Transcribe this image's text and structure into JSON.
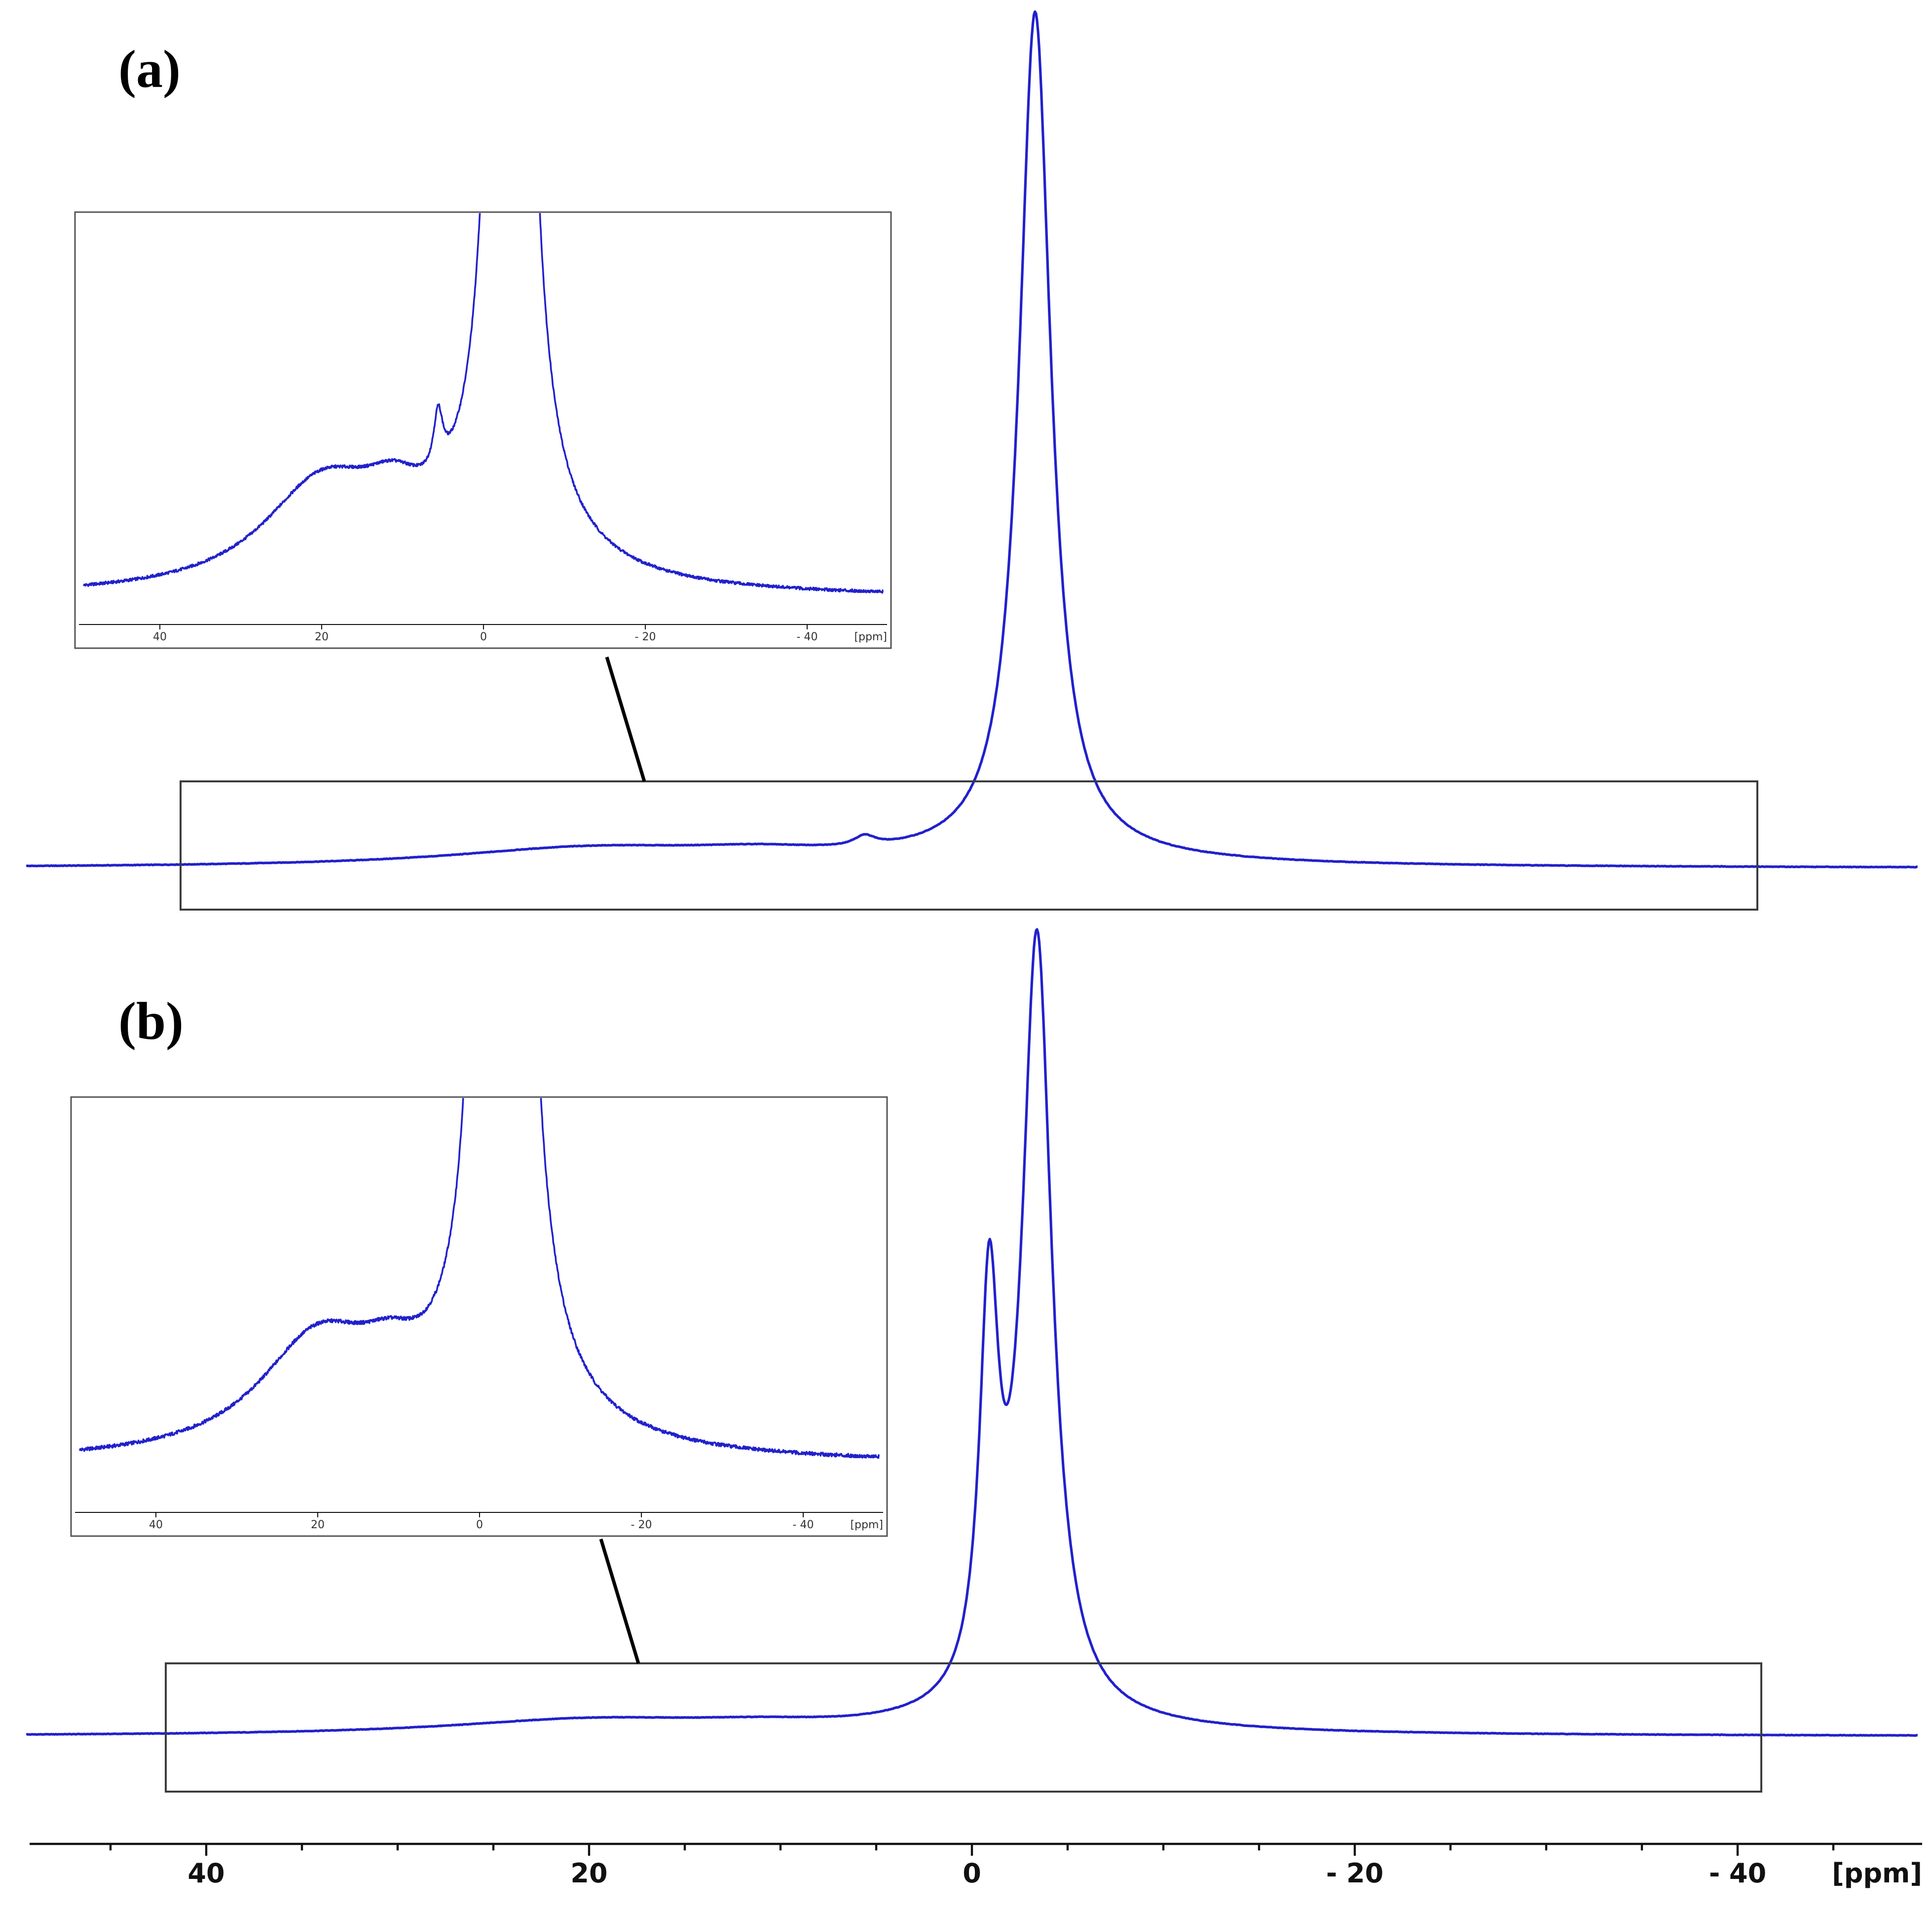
{
  "figure": {
    "panel_a_label": "(a)",
    "panel_b_label": "(b)",
    "line_color": "#2121cc",
    "axis": {
      "tick_labels": [
        "40",
        "20",
        "0",
        "- 20",
        "- 40"
      ],
      "tick_values": [
        40,
        20,
        0,
        -20,
        -40
      ],
      "unit_label": "[ppm]"
    },
    "inset_axis": {
      "tick_labels": [
        "40",
        "20",
        "0",
        "- 20",
        "- 40"
      ],
      "tick_values": [
        40,
        20,
        0,
        -20,
        -40
      ],
      "unit_label": "[ppm]"
    }
  },
  "chart_data": [
    {
      "type": "line",
      "panel": "(a)",
      "xlabel": "[ppm]",
      "x_range": [
        50,
        -50
      ],
      "x_axis_reversed": true,
      "x_ticks": [
        40,
        20,
        0,
        -20,
        -40
      ],
      "grid": false,
      "legend": false,
      "peaks": [
        {
          "center_ppm": -3.3,
          "amplitude": 1.0,
          "hwhm_ppm": 1.0,
          "note": "main sharp peak"
        },
        {
          "center_ppm": -3.3,
          "amplitude": 0.009,
          "hwhm_ppm": 10.0,
          "note": "broad base of main peak"
        },
        {
          "center_ppm": 20.0,
          "amplitude": 0.021,
          "hwhm_ppm": 9.0,
          "note": "broad hump (visible in inset)"
        },
        {
          "center_ppm": 11.0,
          "amplitude": 0.01,
          "hwhm_ppm": 5.0,
          "note": "broad shoulder (visible in inset)"
        },
        {
          "center_ppm": 5.6,
          "amplitude": 0.012,
          "hwhm_ppm": 0.7,
          "note": "small sharp peak (visible in inset)"
        }
      ],
      "inset": {
        "magnification": 5.7,
        "x_ticks": [
          40,
          20,
          0,
          -20,
          -40
        ],
        "xlabel": "[ppm]",
        "main_peak_truncated": true
      }
    },
    {
      "type": "line",
      "panel": "(b)",
      "xlabel": "[ppm]",
      "x_range": [
        50,
        -50
      ],
      "x_axis_reversed": true,
      "x_ticks": [
        40,
        20,
        0,
        -20,
        -40
      ],
      "grid": false,
      "legend": false,
      "peaks": [
        {
          "center_ppm": -3.4,
          "amplitude": 1.0,
          "hwhm_ppm": 0.95,
          "note": "main sharp peak"
        },
        {
          "center_ppm": -0.9,
          "amplitude": 0.5,
          "hwhm_ppm": 0.6,
          "note": "shoulder peak forming doublet shape"
        },
        {
          "center_ppm": -3.0,
          "amplitude": 0.009,
          "hwhm_ppm": 10.0,
          "note": "broad base of main peak"
        },
        {
          "center_ppm": 20.0,
          "amplitude": 0.019,
          "hwhm_ppm": 9.0,
          "note": "broad hump (visible in inset)"
        },
        {
          "center_ppm": 11.0,
          "amplitude": 0.007,
          "hwhm_ppm": 5.0,
          "note": "broad shoulder (visible in inset)"
        }
      ],
      "inset": {
        "magnification": 7.5,
        "x_ticks": [
          40,
          20,
          0,
          -20,
          -40
        ],
        "xlabel": "[ppm]",
        "main_peak_truncated": true
      }
    }
  ]
}
